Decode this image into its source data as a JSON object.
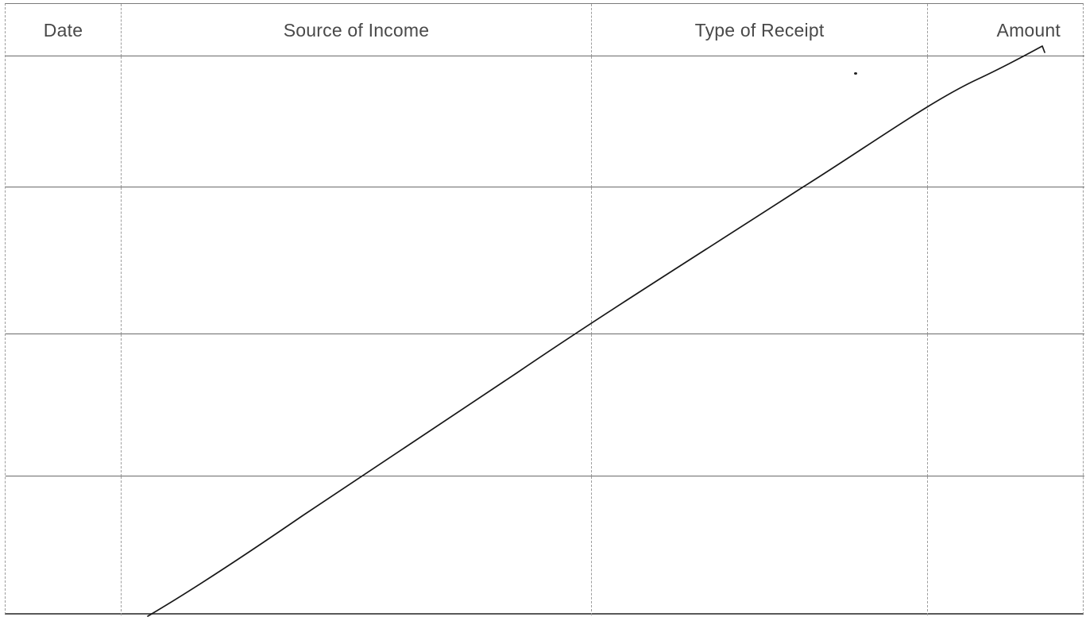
{
  "table": {
    "headers": {
      "date": "Date",
      "source": "Source of Income",
      "type": "Type of Receipt",
      "amount": "Amount"
    },
    "rows": [
      {
        "date": "",
        "source": "",
        "type": "",
        "amount": ""
      },
      {
        "date": "",
        "source": "",
        "type": "",
        "amount": ""
      },
      {
        "date": "",
        "source": "",
        "type": "",
        "amount": ""
      },
      {
        "date": "",
        "source": "",
        "type": "",
        "amount": ""
      }
    ]
  }
}
